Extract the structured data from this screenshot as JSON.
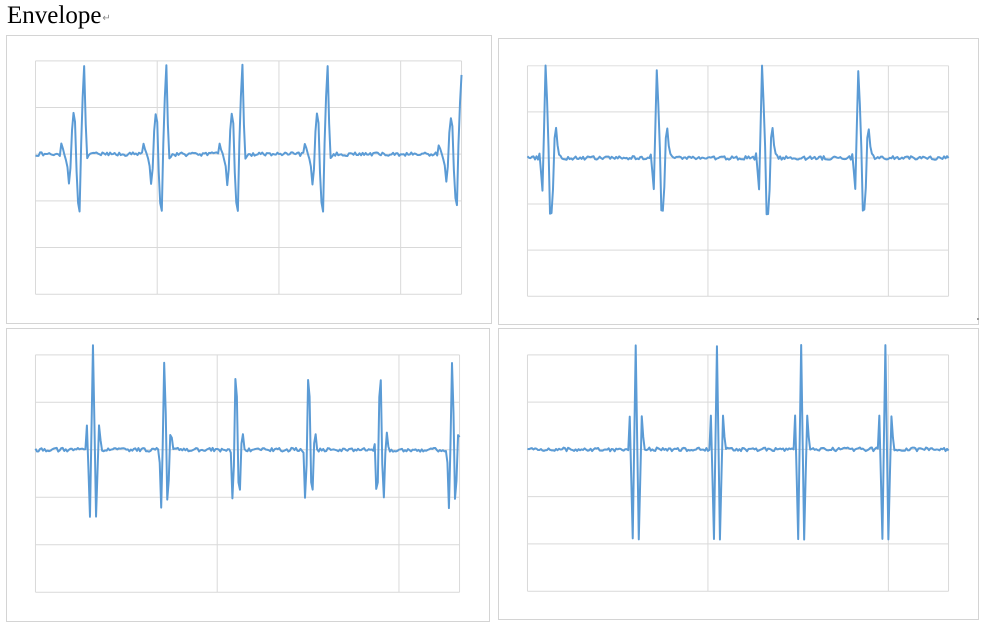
{
  "document": {
    "heading": "Envelope",
    "paragraph_mark": "↵"
  },
  "colors": {
    "series": "#5b9bd5",
    "grid": "#d9d9d9",
    "frame": "#d4d4d4",
    "page": "#ffffff"
  },
  "chart_data": [
    {
      "type": "line",
      "title": "",
      "xlabel": "",
      "ylabel": "",
      "ylim": [
        -3,
        2
      ],
      "xlim": [
        0,
        700
      ],
      "grid": true,
      "legend": "none",
      "x_gridlines": [
        0,
        200,
        400,
        600,
        700
      ],
      "y_gridlines": [
        -3,
        -2,
        -1,
        0,
        1,
        2
      ],
      "pulse_shape": "A",
      "pulse_centers": [
        70,
        205,
        330,
        470,
        690
      ],
      "pulse_amplitudes": [
        1.0,
        1.0,
        1.0,
        1.0,
        0.9
      ],
      "baseline": 0.0,
      "noise": 0.04
    },
    {
      "type": "line",
      "title": "",
      "xlabel": "",
      "ylabel": "",
      "ylim": [
        -3,
        2
      ],
      "xlim": [
        0,
        700
      ],
      "grid": true,
      "legend": "none",
      "x_gridlines": [
        0,
        300,
        600,
        700
      ],
      "y_gridlines": [
        -3,
        -2,
        -1,
        0,
        1,
        2
      ],
      "pulse_shape": "B",
      "pulse_centers": [
        30,
        215,
        390,
        550
      ],
      "pulse_amplitudes": [
        1.0,
        0.95,
        1.0,
        0.95
      ],
      "baseline": 0.0,
      "noise": 0.04
    },
    {
      "type": "line",
      "title": "",
      "xlabel": "",
      "ylabel": "",
      "ylim": [
        -3,
        2
      ],
      "xlim": [
        0,
        700
      ],
      "grid": true,
      "legend": "none",
      "x_gridlines": [
        0,
        300,
        600,
        700
      ],
      "y_gridlines": [
        -3,
        -2,
        -1,
        0,
        1,
        2
      ],
      "pulse_shape": "C",
      "pulse_centers": [
        95,
        213,
        331,
        451,
        569,
        688
      ],
      "pulse_amplitudes": [
        1.0,
        1.0,
        1.0,
        1.0,
        1.0,
        1.0
      ],
      "baseline": 0.0,
      "noise": 0.04
    },
    {
      "type": "line",
      "title": "",
      "xlabel": "",
      "ylabel": "",
      "ylim": [
        -3,
        2
      ],
      "xlim": [
        0,
        700
      ],
      "grid": true,
      "legend": "none",
      "x_gridlines": [
        0,
        300,
        600,
        700
      ],
      "y_gridlines": [
        -3,
        -2,
        -1,
        0,
        1,
        2
      ],
      "pulse_shape": "D",
      "pulse_centers": [
        180,
        315,
        455,
        595
      ],
      "pulse_amplitudes": [
        1.0,
        1.0,
        1.0,
        1.0
      ],
      "baseline": 0.0,
      "noise": 0.04
    }
  ]
}
